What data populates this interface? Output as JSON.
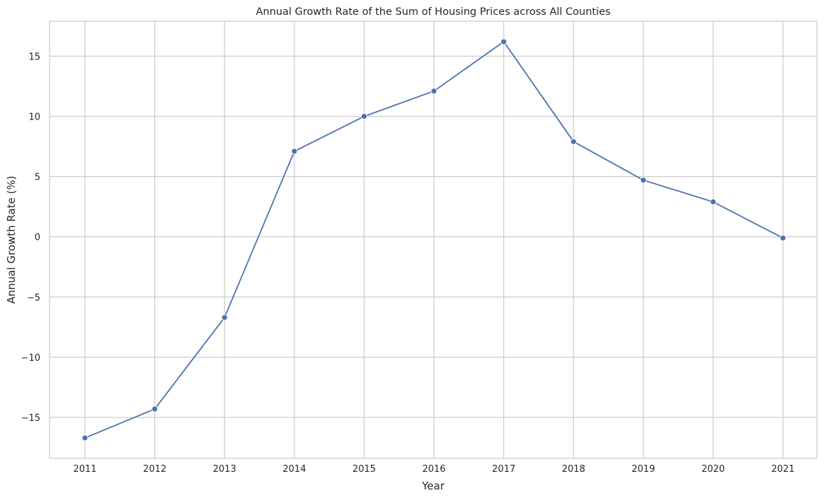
{
  "chart_data": {
    "type": "line",
    "title": "Annual Growth Rate of the Sum of Housing Prices across All Counties",
    "xlabel": "Year",
    "ylabel": "Annual Growth Rate (%)",
    "x": [
      "2011",
      "2012",
      "2013",
      "2014",
      "2015",
      "2016",
      "2017",
      "2018",
      "2019",
      "2020",
      "2021"
    ],
    "series": [
      {
        "values": [
          -16.7,
          -14.3,
          -6.7,
          7.1,
          10.0,
          12.1,
          16.2,
          7.9,
          4.7,
          2.9,
          -0.1
        ]
      }
    ],
    "yticks": [
      -15,
      -10,
      -5,
      0,
      5,
      10,
      15
    ],
    "ytick_labels": [
      "−15",
      "−10",
      "−5",
      "0",
      "5",
      "10",
      "15"
    ],
    "ylim": [
      -18.4,
      17.9
    ],
    "grid": true,
    "marker": "circle",
    "line_color": "#4c72b0",
    "grid_color": "#cccccc"
  }
}
